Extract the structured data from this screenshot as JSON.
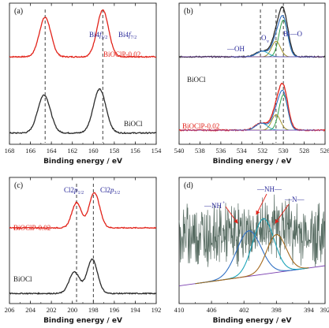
{
  "colors": {
    "black": "#2b2b2b",
    "red": "#e2231a",
    "blue_text": "#2a2a9a",
    "dash": "#111111",
    "fit_blue": "#2f6fc4",
    "fit_green": "#1e9a3a",
    "fit_olive": "#9c8a1a",
    "fit_cyan": "#19a3b8",
    "fit_purple": "#7a3fb0",
    "fit_brown": "#a4681c",
    "noise_gray": "#556a60"
  },
  "chart_data": [
    {
      "panel": "(a)",
      "type": "line",
      "xlabel": "Binding energy / eV",
      "xlim": [
        168,
        154
      ],
      "xticks": [
        168,
        166,
        164,
        162,
        160,
        158,
        156,
        154
      ],
      "dashed_lines_x": [
        164.6,
        159.1
      ],
      "peak_labels": [
        {
          "main": "Bi4",
          "ital": "f",
          "sub": "5/2",
          "x": 164.6
        },
        {
          "main": "Bi4",
          "ital": "f",
          "sub": "7/2",
          "x": 159.1
        }
      ],
      "series": [
        {
          "name": "BiOClP-0.02",
          "color": "red",
          "baseline": 0.62,
          "peaks": [
            {
              "x": 164.6,
              "h": 0.28,
              "w": 0.55
            },
            {
              "x": 159.1,
              "h": 0.33,
              "w": 0.55
            }
          ]
        },
        {
          "name": "BiOCl",
          "color": "black",
          "baseline": 0.08,
          "peaks": [
            {
              "x": 164.7,
              "h": 0.27,
              "w": 0.6
            },
            {
              "x": 159.4,
              "h": 0.31,
              "w": 0.6
            }
          ]
        }
      ]
    },
    {
      "panel": "(b)",
      "type": "line",
      "xlabel": "Binding energy / eV",
      "xlim": [
        540,
        526
      ],
      "xticks": [
        540,
        538,
        536,
        534,
        532,
        530,
        528,
        526
      ],
      "dashed_lines_x": [
        532.2,
        530.7,
        530.0
      ],
      "annotations": [
        {
          "text": "—OH",
          "main": "—OH",
          "sub": ""
        },
        {
          "text": "O",
          "main": "O",
          "sub": "v"
        },
        {
          "text": "Bi—O",
          "main": "Bi—O",
          "sub": ""
        }
      ],
      "series": [
        {
          "name": "BiOCl",
          "color": "black",
          "baseline": 0.62,
          "peaks": [
            {
              "x": 530.0,
              "h": 0.31,
              "w": 0.45
            },
            {
              "x": 530.7,
              "h": 0.12,
              "w": 0.45
            },
            {
              "x": 532.0,
              "h": 0.04,
              "w": 0.6
            }
          ]
        },
        {
          "name": "BiOClP-0.02",
          "color": "red",
          "baseline": 0.1,
          "peaks": [
            {
              "x": 530.0,
              "h": 0.29,
              "w": 0.45
            },
            {
              "x": 530.7,
              "h": 0.12,
              "w": 0.45
            },
            {
              "x": 532.1,
              "h": 0.05,
              "w": 0.6
            }
          ]
        }
      ]
    },
    {
      "panel": "(c)",
      "type": "line",
      "xlabel": "Binding energy / eV",
      "xlim": [
        206,
        192
      ],
      "xticks": [
        206,
        204,
        202,
        200,
        198,
        196,
        194,
        192
      ],
      "dashed_lines_x": [
        199.6,
        198.0
      ],
      "peak_labels": [
        {
          "main": "Cl2",
          "ital": "p",
          "sub": "1/2",
          "x": 199.6
        },
        {
          "main": "Cl2",
          "ital": "p",
          "sub": "3/2",
          "x": 198.0
        }
      ],
      "series": [
        {
          "name": "BiOClP-0.02",
          "color": "red",
          "baseline": 0.6,
          "peaks": [
            {
              "x": 199.6,
              "h": 0.2,
              "w": 0.45
            },
            {
              "x": 197.9,
              "h": 0.28,
              "w": 0.5
            }
          ]
        },
        {
          "name": "BiOCl",
          "color": "black",
          "baseline": 0.08,
          "peaks": [
            {
              "x": 199.8,
              "h": 0.17,
              "w": 0.5
            },
            {
              "x": 198.1,
              "h": 0.27,
              "w": 0.5
            }
          ]
        }
      ]
    },
    {
      "panel": "(d)",
      "type": "line",
      "xlabel": "Binding energy / eV",
      "xlim": [
        410,
        392
      ],
      "xticks": [
        410,
        406,
        402,
        398,
        394,
        392
      ],
      "annotations": [
        {
          "text": "—NH+",
          "main": "—NH",
          "sup": "+"
        },
        {
          "text": "—NH—",
          "main": "—NH—",
          "sup": ""
        },
        {
          "text": "—N—",
          "main": "—N—",
          "sup": ""
        }
      ],
      "fit_components": [
        {
          "x": 401.4,
          "h": 0.36,
          "w": 1.5,
          "color": "fit_blue"
        },
        {
          "x": 399.6,
          "h": 0.44,
          "w": 1.3,
          "color": "fit_cyan"
        },
        {
          "x": 398.0,
          "h": 0.3,
          "w": 1.2,
          "color": "fit_brown"
        }
      ],
      "background_line": {
        "from": [
          410,
          0.14
        ],
        "to": [
          392,
          0.3
        ]
      }
    }
  ]
}
